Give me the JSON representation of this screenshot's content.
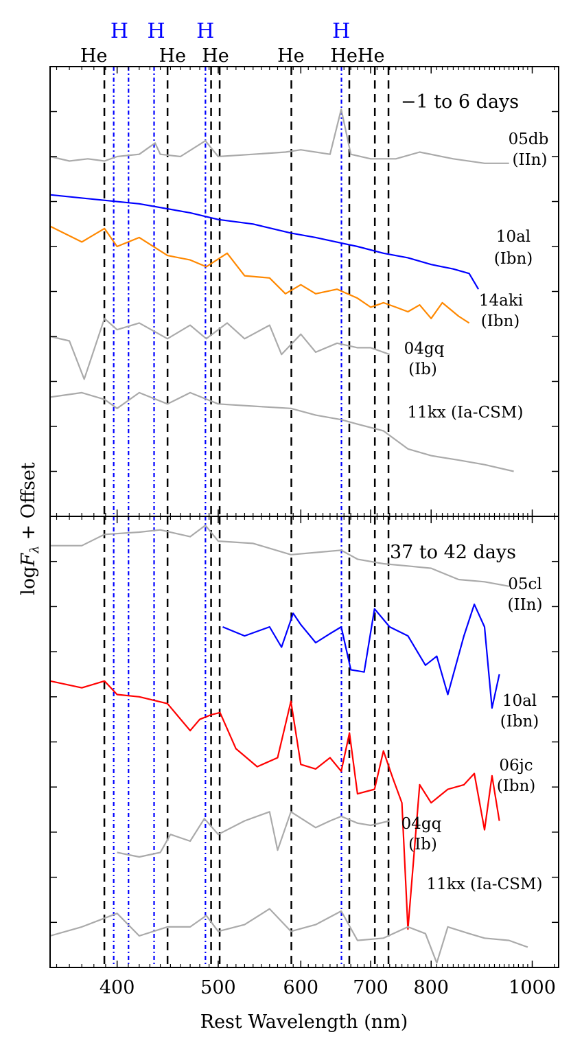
{
  "figure": {
    "xlabel": "Rest Wavelength (nm)",
    "ylabel_base": "log",
    "ylabel_sym": "F",
    "ylabel_sub": "λ",
    "ylabel_rest": "+ Offset"
  },
  "chart_data": [
    {
      "type": "line",
      "panel": "top",
      "title": "−1 to 6 days",
      "xlabel": "Rest Wavelength (nm)",
      "ylabel": "log F_λ + Offset",
      "xscale": "log",
      "xlim": [
        345,
        1060
      ],
      "ylim": [
        0,
        10
      ],
      "xticks": [
        400,
        500,
        600,
        700,
        800,
        1000
      ],
      "tick_labels": [
        "400",
        "500",
        "600",
        "700",
        "800",
        "1000"
      ],
      "line_ids": {
        "He": [
          388.9,
          447.1,
          492.2,
          501.6,
          587.6,
          667.8,
          706.5,
          728.1
        ],
        "H": [
          397.0,
          410.2,
          434.0,
          486.1,
          656.3
        ]
      },
      "line_labels": [
        {
          "text": "He",
          "x": 380,
          "row": "He"
        },
        {
          "text": "He",
          "x": 452,
          "row": "He"
        },
        {
          "text": "He",
          "x": 497,
          "row": "He"
        },
        {
          "text": "He",
          "x": 587,
          "row": "He"
        },
        {
          "text": "HeHe",
          "x": 680,
          "row": "He"
        },
        {
          "text": "H",
          "x": 402,
          "row": "H"
        },
        {
          "text": "H",
          "x": 436,
          "row": "H"
        },
        {
          "text": "H",
          "x": 486,
          "row": "H"
        },
        {
          "text": "H",
          "x": 656,
          "row": "H"
        }
      ],
      "series": [
        {
          "name": "05db",
          "type_label": "(IIn)",
          "color": "#aaaaaa",
          "x": [
            345,
            360,
            375,
            389,
            400,
            420,
            435,
            440,
            460,
            486,
            500,
            540,
            580,
            600,
            640,
            656,
            670,
            700,
            740,
            780,
            840,
            900,
            950
          ],
          "y": [
            8.0,
            7.9,
            7.95,
            7.9,
            8.0,
            8.05,
            8.3,
            8.05,
            8.0,
            8.35,
            8.0,
            8.05,
            8.1,
            8.15,
            8.05,
            9.05,
            8.05,
            7.95,
            7.95,
            8.1,
            7.95,
            7.85,
            7.85
          ]
        },
        {
          "name": "10al",
          "type_label": "(Ibn)",
          "color": "#0000ff",
          "x": [
            345,
            380,
            420,
            470,
            500,
            540,
            587,
            620,
            680,
            720,
            760,
            800,
            840,
            870,
            888
          ],
          "y": [
            7.15,
            7.05,
            6.95,
            6.75,
            6.6,
            6.5,
            6.3,
            6.2,
            6.0,
            5.85,
            5.75,
            5.6,
            5.5,
            5.4,
            5.05
          ]
        },
        {
          "name": "14aki",
          "type_label": "(Ibn)",
          "color": "#ff8800",
          "x": [
            345,
            370,
            389,
            400,
            420,
            447,
            470,
            487,
            510,
            530,
            560,
            580,
            600,
            620,
            650,
            680,
            700,
            720,
            740,
            760,
            780,
            800,
            820,
            850,
            870
          ],
          "y": [
            6.45,
            6.1,
            6.4,
            6.0,
            6.2,
            5.8,
            5.7,
            5.55,
            5.85,
            5.35,
            5.3,
            4.95,
            5.15,
            4.95,
            5.05,
            4.85,
            4.65,
            4.75,
            4.65,
            4.55,
            4.7,
            4.4,
            4.75,
            4.45,
            4.3
          ]
        },
        {
          "name": "04gq",
          "type_label": "(Ib)",
          "color": "#aaaaaa",
          "x": [
            345,
            360,
            372,
            389,
            400,
            420,
            447,
            470,
            487,
            510,
            530,
            560,
            575,
            600,
            620,
            650,
            680,
            700,
            730
          ],
          "y": [
            4.0,
            3.9,
            3.05,
            4.4,
            4.15,
            4.3,
            3.95,
            4.25,
            3.95,
            4.3,
            3.95,
            4.25,
            3.6,
            4.05,
            3.65,
            3.85,
            3.75,
            3.75,
            3.6
          ]
        },
        {
          "name": "11kx",
          "type_label": "(Ia-CSM)",
          "color": "#aaaaaa",
          "x": [
            345,
            370,
            389,
            400,
            420,
            447,
            470,
            500,
            540,
            587,
            620,
            656,
            680,
            720,
            760,
            800,
            850,
            900,
            960
          ],
          "y": [
            2.65,
            2.75,
            2.6,
            2.4,
            2.75,
            2.5,
            2.75,
            2.5,
            2.45,
            2.4,
            2.25,
            2.15,
            2.05,
            1.9,
            1.5,
            1.35,
            1.25,
            1.15,
            1.0
          ]
        }
      ]
    },
    {
      "type": "line",
      "panel": "bottom",
      "title": "37 to 42 days",
      "xlabel": "Rest Wavelength (nm)",
      "ylabel": "log F_λ + Offset",
      "xscale": "log",
      "xlim": [
        345,
        1060
      ],
      "ylim": [
        0,
        10
      ],
      "xticks": [
        400,
        500,
        600,
        700,
        800,
        1000
      ],
      "tick_labels": [
        "400",
        "500",
        "600",
        "700",
        "800",
        "1000"
      ],
      "series": [
        {
          "name": "05cl",
          "type_label": "(IIn)",
          "color": "#aaaaaa",
          "x": [
            345,
            370,
            389,
            420,
            440,
            470,
            486,
            500,
            540,
            587,
            620,
            656,
            680,
            720,
            760,
            800,
            850,
            900,
            950
          ],
          "y": [
            9.35,
            9.35,
            9.6,
            9.65,
            9.7,
            9.55,
            9.8,
            9.45,
            9.4,
            9.15,
            9.2,
            9.25,
            9.05,
            8.95,
            8.9,
            8.85,
            8.6,
            8.55,
            8.45
          ]
        },
        {
          "name": "10al",
          "type_label": "(Ibn)",
          "color": "#0000ff",
          "x": [
            505,
            530,
            560,
            575,
            590,
            600,
            620,
            640,
            656,
            670,
            690,
            706,
            730,
            760,
            790,
            810,
            830,
            860,
            880,
            900,
            915,
            930
          ],
          "y": [
            7.55,
            7.35,
            7.55,
            7.1,
            7.85,
            7.6,
            7.2,
            7.4,
            7.55,
            6.6,
            6.55,
            7.95,
            7.55,
            7.35,
            6.7,
            6.9,
            6.05,
            7.35,
            8.05,
            7.55,
            5.75,
            6.5
          ]
        },
        {
          "name": "06jc",
          "type_label": "(Ibn)",
          "color": "#ff0000",
          "x": [
            345,
            370,
            389,
            400,
            420,
            447,
            470,
            480,
            492,
            502,
            520,
            545,
            570,
            587,
            600,
            620,
            640,
            656,
            668,
            680,
            706,
            720,
            735,
            750,
            760,
            780,
            800,
            830,
            860,
            880,
            900,
            915,
            930
          ],
          "y": [
            6.35,
            6.2,
            6.35,
            6.05,
            6.0,
            5.85,
            5.25,
            5.5,
            5.6,
            5.65,
            4.85,
            4.45,
            4.65,
            5.9,
            4.5,
            4.4,
            4.65,
            4.35,
            5.2,
            3.85,
            3.95,
            4.8,
            4.2,
            3.65,
            0.85,
            4.05,
            3.65,
            3.95,
            4.05,
            4.3,
            3.05,
            4.25,
            3.25
          ]
        },
        {
          "name": "04gq",
          "type_label": "(Ib)",
          "color": "#aaaaaa",
          "x": [
            400,
            420,
            440,
            450,
            470,
            485,
            500,
            530,
            560,
            570,
            587,
            620,
            640,
            656,
            680,
            700,
            730
          ],
          "y": [
            2.55,
            2.45,
            2.55,
            2.95,
            2.8,
            3.3,
            2.95,
            3.25,
            3.45,
            2.6,
            3.45,
            3.1,
            3.25,
            3.35,
            3.2,
            3.15,
            3.25
          ]
        },
        {
          "name": "11kx",
          "type_label": "(Ia-CSM)",
          "color": "#aaaaaa",
          "x": [
            345,
            370,
            400,
            420,
            447,
            470,
            487,
            500,
            530,
            560,
            587,
            620,
            656,
            680,
            720,
            760,
            790,
            810,
            830,
            870,
            900,
            950,
            990
          ],
          "y": [
            0.7,
            0.9,
            1.2,
            0.7,
            0.9,
            0.9,
            1.15,
            0.8,
            0.95,
            1.3,
            0.8,
            0.95,
            1.25,
            0.6,
            0.65,
            0.9,
            0.75,
            0.1,
            0.9,
            0.75,
            0.65,
            0.6,
            0.45
          ]
        }
      ]
    }
  ]
}
